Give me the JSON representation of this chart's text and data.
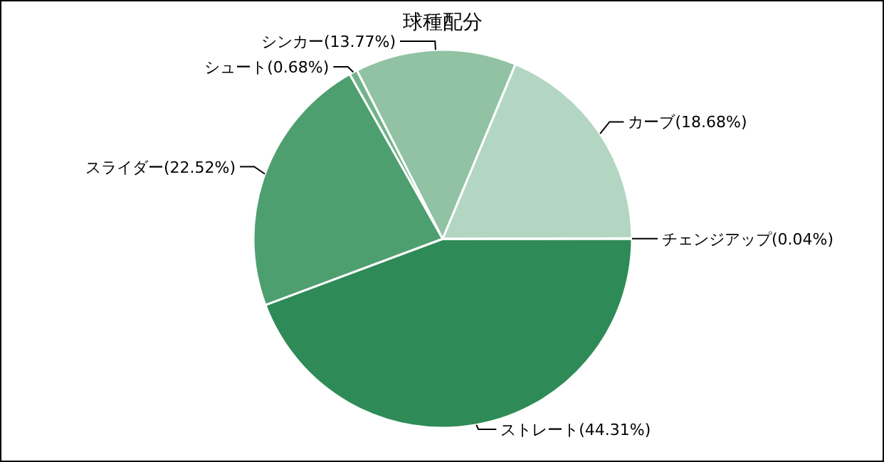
{
  "chart_data": {
    "type": "pie",
    "title": "球種配分",
    "categories": [
      "ストレート",
      "スライダー",
      "シュート",
      "シンカー",
      "カーブ",
      "チェンジアップ"
    ],
    "values": [
      44.31,
      22.52,
      0.68,
      13.77,
      18.68,
      0.04
    ],
    "value_labels": [
      "(44.31%)",
      "(22.52%)",
      "(0.68%)",
      "(13.77%)",
      "(18.68%)",
      "(0.04%)"
    ],
    "colors": [
      "#2e8b57",
      "#4e9f70",
      "#72b38c",
      "#90c2a3",
      "#b3d6c3",
      "#d0e6da"
    ]
  }
}
